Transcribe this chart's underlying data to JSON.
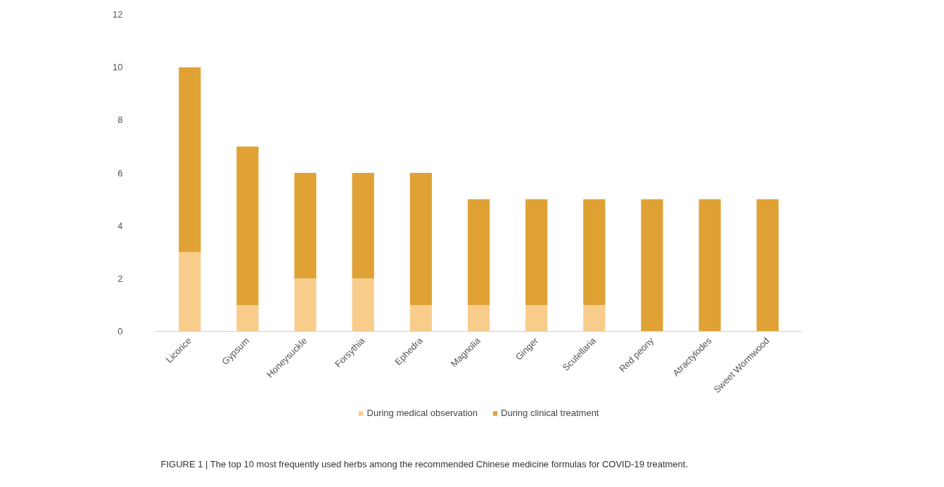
{
  "chart_data": {
    "type": "bar",
    "stacked": true,
    "categories": [
      "Licorice",
      "Gypsum",
      "Honeysuckle",
      "Forsythia",
      "Ephedra",
      "Magnolia",
      "Ginger",
      "Scutellaria",
      "Red peony",
      "Atractylodes",
      "Sweet Wormwood"
    ],
    "series": [
      {
        "name": "During medical observation",
        "color": "#f8cd8c",
        "values": [
          3,
          1,
          2,
          2,
          1,
          1,
          1,
          1,
          0,
          0,
          0
        ]
      },
      {
        "name": "During clinical treatment",
        "color": "#e0a235",
        "values": [
          7,
          6,
          4,
          4,
          5,
          4,
          4,
          4,
          5,
          5,
          5
        ]
      }
    ],
    "ylim": [
      0,
      12
    ],
    "yticks": [
      0,
      2,
      4,
      6,
      8,
      10,
      12
    ],
    "grid": false,
    "legend": "bottom",
    "annotations": [
      "FIGURE 1 | The top 10 most frequently used herbs among the recommended Chinese medicine formulas for COVID-19 treatment."
    ]
  }
}
